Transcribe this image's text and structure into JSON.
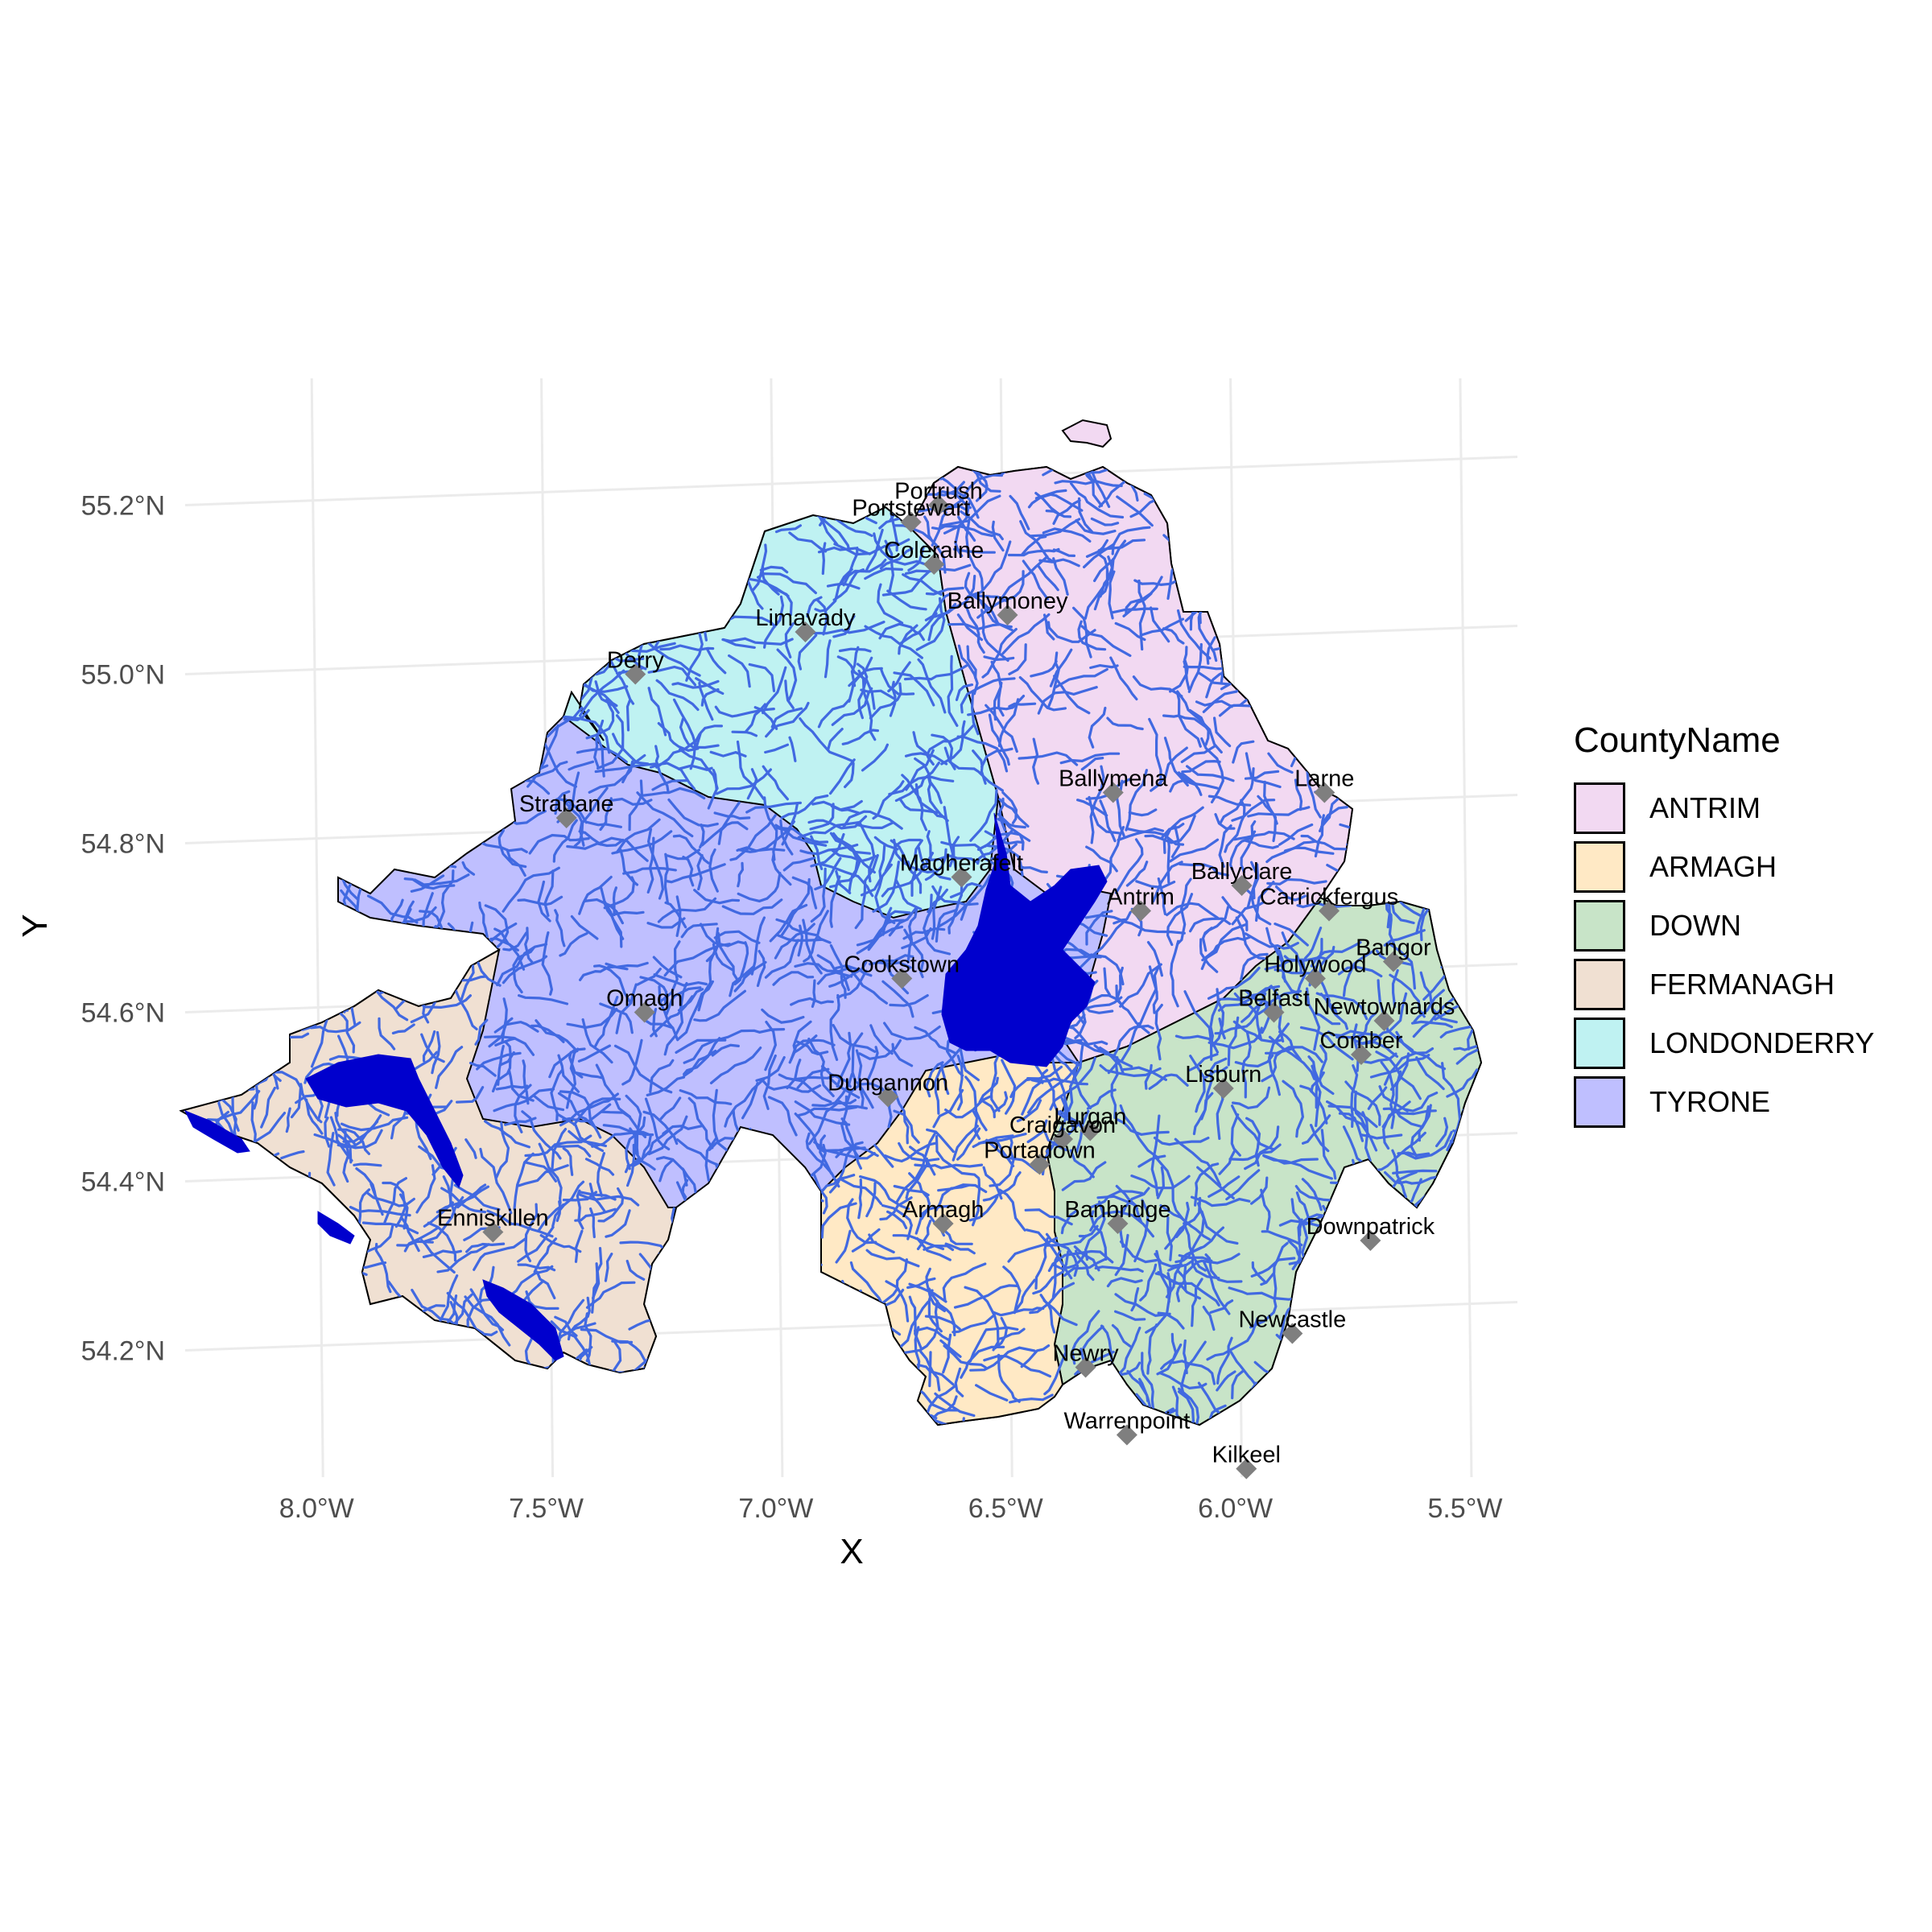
{
  "chart_data": {
    "type": "map",
    "xlabel": "X",
    "ylabel": "Y",
    "x_ticks": [
      "8.0°W",
      "7.5°W",
      "7.0°W",
      "6.5°W",
      "6.0°W",
      "5.5°W"
    ],
    "x_tick_values": [
      -8.0,
      -7.5,
      -7.0,
      -6.5,
      -6.0,
      -5.5
    ],
    "y_ticks": [
      "55.2°N",
      "55.0°N",
      "54.8°N",
      "54.6°N",
      "54.4°N",
      "54.2°N"
    ],
    "y_tick_values": [
      55.2,
      55.0,
      54.8,
      54.6,
      54.4,
      54.2
    ],
    "xlim": [
      -8.3,
      -5.4
    ],
    "ylim": [
      54.05,
      55.35
    ],
    "grid": true,
    "legend": {
      "title": "CountyName",
      "placement": "right",
      "items": [
        {
          "name": "ANTRIM",
          "color": "#f2d9f2"
        },
        {
          "name": "ARMAGH",
          "color": "#ffe9c5"
        },
        {
          "name": "DOWN",
          "color": "#c8e4c8"
        },
        {
          "name": "FERMANAGH",
          "color": "#f0e0d2"
        },
        {
          "name": "LONDONDERRY",
          "color": "#bff2f2"
        },
        {
          "name": "TYRONE",
          "color": "#bfbfff"
        }
      ]
    },
    "river_color": "#4169e1",
    "lake_color": "#0000cd",
    "towns": [
      {
        "name": "Portrush",
        "lon": -6.66,
        "lat": 55.2
      },
      {
        "name": "Portstewart",
        "lon": -6.72,
        "lat": 55.18
      },
      {
        "name": "Coleraine",
        "lon": -6.67,
        "lat": 55.13
      },
      {
        "name": "Ballymoney",
        "lon": -6.51,
        "lat": 55.07
      },
      {
        "name": "Limavady",
        "lon": -6.95,
        "lat": 55.05
      },
      {
        "name": "Derry",
        "lon": -7.32,
        "lat": 55.0
      },
      {
        "name": "Strabane",
        "lon": -7.47,
        "lat": 54.83
      },
      {
        "name": "Ballymena",
        "lon": -6.28,
        "lat": 54.86
      },
      {
        "name": "Larne",
        "lon": -5.82,
        "lat": 54.86
      },
      {
        "name": "Magherafelt",
        "lon": -6.61,
        "lat": 54.76
      },
      {
        "name": "Ballyclare",
        "lon": -6.0,
        "lat": 54.75
      },
      {
        "name": "Antrim",
        "lon": -6.22,
        "lat": 54.72
      },
      {
        "name": "Carrickfergus",
        "lon": -5.81,
        "lat": 54.72
      },
      {
        "name": "Bangor",
        "lon": -5.67,
        "lat": 54.66
      },
      {
        "name": "Holywood",
        "lon": -5.84,
        "lat": 54.64
      },
      {
        "name": "Cookstown",
        "lon": -6.74,
        "lat": 54.64
      },
      {
        "name": "Belfast",
        "lon": -5.93,
        "lat": 54.6
      },
      {
        "name": "Newtownards",
        "lon": -5.69,
        "lat": 54.59
      },
      {
        "name": "Omagh",
        "lon": -7.3,
        "lat": 54.6
      },
      {
        "name": "Comber",
        "lon": -5.74,
        "lat": 54.55
      },
      {
        "name": "Lisburn",
        "lon": -6.04,
        "lat": 54.51
      },
      {
        "name": "Dungannon",
        "lon": -6.77,
        "lat": 54.5
      },
      {
        "name": "Lurgan",
        "lon": -6.33,
        "lat": 54.46
      },
      {
        "name": "Craigavon",
        "lon": -6.39,
        "lat": 54.45
      },
      {
        "name": "Portadown",
        "lon": -6.44,
        "lat": 54.42
      },
      {
        "name": "Banbridge",
        "lon": -6.27,
        "lat": 54.35
      },
      {
        "name": "Armagh",
        "lon": -6.65,
        "lat": 54.35
      },
      {
        "name": "Downpatrick",
        "lon": -5.72,
        "lat": 54.33
      },
      {
        "name": "Enniskillen",
        "lon": -7.63,
        "lat": 54.34
      },
      {
        "name": "Newcastle",
        "lon": -5.89,
        "lat": 54.22
      },
      {
        "name": "Newry",
        "lon": -6.34,
        "lat": 54.18
      },
      {
        "name": "Warrenpoint",
        "lon": -6.25,
        "lat": 54.1
      },
      {
        "name": "Kilkeel",
        "lon": -5.99,
        "lat": 54.06
      }
    ]
  }
}
